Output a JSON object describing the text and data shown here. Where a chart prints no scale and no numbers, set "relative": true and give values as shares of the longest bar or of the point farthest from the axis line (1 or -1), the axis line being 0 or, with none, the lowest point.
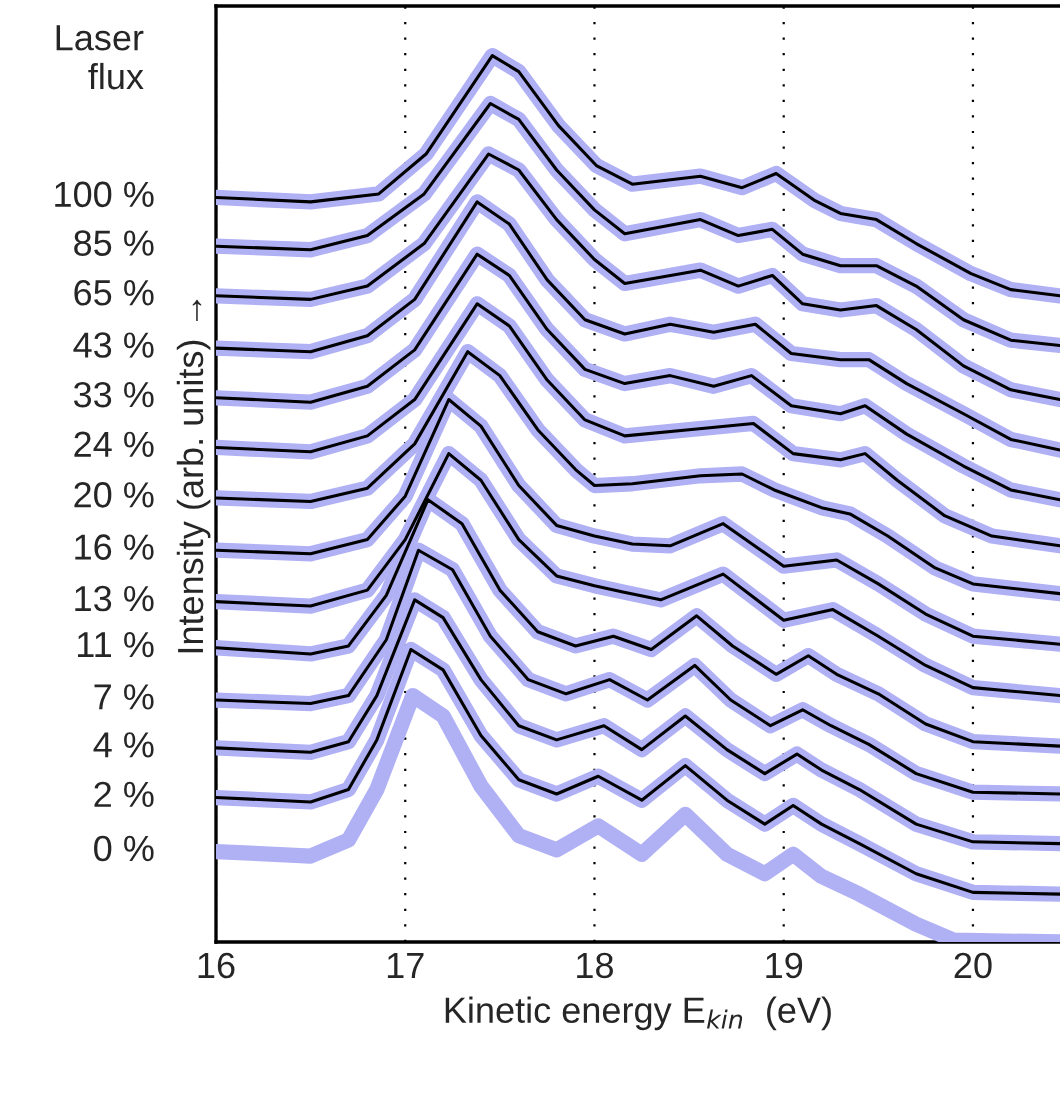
{
  "chart_data": {
    "type": "line",
    "relative": true,
    "xlabel": "Kinetic energy E$_{kin}$  (eV)",
    "ylabel": "Intensity (arb. units) →",
    "legend_title": "Laser flux",
    "xlim": [
      16,
      20.46
    ],
    "xticks": [
      16,
      17,
      18,
      19,
      20
    ],
    "grid": "x",
    "line_style": "solid",
    "marker": "none",
    "legend": "left",
    "series": [
      {
        "name": "100 %",
        "color": "#b0b0f5",
        "x": [
          16.0,
          16.5,
          16.86,
          17.11,
          17.46,
          17.6,
          17.81,
          18.01,
          18.2,
          18.56,
          18.78,
          18.96,
          19.16,
          19.3,
          19.49,
          19.7,
          19.99,
          20.2,
          20.46
        ],
        "values": [
          0.84,
          0.835,
          0.844,
          0.889,
          1.0,
          0.982,
          0.921,
          0.876,
          0.855,
          0.864,
          0.851,
          0.867,
          0.837,
          0.822,
          0.815,
          0.788,
          0.754,
          0.736,
          0.729
        ]
      },
      {
        "color": "#000000",
        "x": [
          16.0,
          16.5,
          16.86,
          17.11,
          17.46,
          17.6,
          17.81,
          18.01,
          18.2,
          18.56,
          18.78,
          18.96,
          19.16,
          19.3,
          19.49,
          19.7,
          19.99,
          20.2,
          20.46
        ],
        "values": [
          0.84,
          0.835,
          0.844,
          0.889,
          1.0,
          0.982,
          0.921,
          0.876,
          0.855,
          0.864,
          0.851,
          0.867,
          0.837,
          0.822,
          0.815,
          0.788,
          0.754,
          0.736,
          0.729
        ]
      },
      {
        "name": "85 %",
        "color": "#b0b0f5",
        "x": [
          16.0,
          16.5,
          16.8,
          17.1,
          17.45,
          17.6,
          17.8,
          18.0,
          18.16,
          18.56,
          18.76,
          18.94,
          19.1,
          19.3,
          19.49,
          19.7,
          19.95,
          20.2,
          20.46
        ],
        "values": [
          0.785,
          0.781,
          0.797,
          0.844,
          0.946,
          0.928,
          0.871,
          0.826,
          0.799,
          0.815,
          0.797,
          0.804,
          0.776,
          0.763,
          0.763,
          0.74,
          0.702,
          0.679,
          0.673
        ]
      },
      {
        "color": "#000000",
        "x": [
          16.0,
          16.5,
          16.8,
          17.1,
          17.45,
          17.6,
          17.8,
          18.0,
          18.16,
          18.56,
          18.76,
          18.94,
          19.1,
          19.3,
          19.49,
          19.7,
          19.95,
          20.2,
          20.46
        ],
        "values": [
          0.785,
          0.781,
          0.797,
          0.844,
          0.946,
          0.928,
          0.871,
          0.826,
          0.799,
          0.815,
          0.797,
          0.804,
          0.776,
          0.763,
          0.763,
          0.74,
          0.702,
          0.679,
          0.673
        ]
      },
      {
        "name": "65 %",
        "color": "#b0b0f5",
        "x": [
          16.0,
          16.5,
          16.8,
          17.1,
          17.44,
          17.6,
          17.8,
          18.0,
          18.16,
          18.56,
          18.76,
          18.94,
          19.1,
          19.3,
          19.49,
          19.7,
          19.95,
          20.2,
          20.46
        ],
        "values": [
          0.729,
          0.725,
          0.74,
          0.788,
          0.889,
          0.871,
          0.815,
          0.77,
          0.743,
          0.758,
          0.74,
          0.752,
          0.72,
          0.713,
          0.718,
          0.691,
          0.65,
          0.623,
          0.612
        ]
      },
      {
        "color": "#000000",
        "x": [
          16.0,
          16.5,
          16.8,
          17.1,
          17.44,
          17.6,
          17.8,
          18.0,
          18.16,
          18.56,
          18.76,
          18.94,
          19.1,
          19.3,
          19.49,
          19.7,
          19.95,
          20.2,
          20.46
        ],
        "values": [
          0.729,
          0.725,
          0.74,
          0.788,
          0.889,
          0.871,
          0.815,
          0.77,
          0.743,
          0.758,
          0.74,
          0.752,
          0.72,
          0.713,
          0.718,
          0.691,
          0.65,
          0.623,
          0.612
        ]
      },
      {
        "name": "43 %",
        "color": "#b0b0f5",
        "x": [
          16.0,
          16.5,
          16.8,
          17.05,
          17.38,
          17.55,
          17.75,
          17.95,
          18.16,
          18.4,
          18.63,
          18.85,
          19.04,
          19.3,
          19.45,
          19.65,
          19.95,
          20.2,
          20.46
        ],
        "values": [
          0.67,
          0.666,
          0.684,
          0.725,
          0.835,
          0.81,
          0.747,
          0.702,
          0.686,
          0.697,
          0.688,
          0.697,
          0.664,
          0.657,
          0.657,
          0.63,
          0.596,
          0.567,
          0.555
        ]
      },
      {
        "color": "#000000",
        "x": [
          16.0,
          16.5,
          16.8,
          17.05,
          17.38,
          17.55,
          17.75,
          17.95,
          18.16,
          18.4,
          18.63,
          18.85,
          19.04,
          19.3,
          19.45,
          19.65,
          19.95,
          20.2,
          20.46
        ],
        "values": [
          0.67,
          0.666,
          0.684,
          0.725,
          0.835,
          0.81,
          0.747,
          0.702,
          0.686,
          0.697,
          0.688,
          0.697,
          0.664,
          0.657,
          0.657,
          0.63,
          0.596,
          0.567,
          0.555
        ]
      },
      {
        "name": "33 %",
        "color": "#b0b0f5",
        "x": [
          16.0,
          16.5,
          16.8,
          17.05,
          17.38,
          17.55,
          17.75,
          17.95,
          18.16,
          18.4,
          18.63,
          18.83,
          19.04,
          19.3,
          19.43,
          19.65,
          19.95,
          20.2,
          20.46
        ],
        "values": [
          0.614,
          0.609,
          0.627,
          0.668,
          0.776,
          0.752,
          0.691,
          0.646,
          0.63,
          0.639,
          0.627,
          0.639,
          0.605,
          0.596,
          0.605,
          0.573,
          0.537,
          0.51,
          0.499
        ]
      },
      {
        "color": "#000000",
        "x": [
          16.0,
          16.5,
          16.8,
          17.05,
          17.38,
          17.55,
          17.75,
          17.95,
          18.16,
          18.4,
          18.63,
          18.83,
          19.04,
          19.3,
          19.43,
          19.65,
          19.95,
          20.2,
          20.46
        ],
        "values": [
          0.614,
          0.609,
          0.627,
          0.668,
          0.776,
          0.752,
          0.691,
          0.646,
          0.63,
          0.639,
          0.627,
          0.639,
          0.605,
          0.596,
          0.605,
          0.573,
          0.537,
          0.51,
          0.499
        ]
      },
      {
        "name": "24 %",
        "color": "#b0b0f5",
        "x": [
          16.0,
          16.5,
          16.8,
          17.05,
          17.38,
          17.55,
          17.75,
          17.95,
          18.16,
          18.5,
          18.84,
          19.05,
          19.3,
          19.43,
          19.6,
          19.85,
          20.1,
          20.46
        ],
        "values": [
          0.558,
          0.553,
          0.571,
          0.612,
          0.72,
          0.695,
          0.634,
          0.589,
          0.571,
          0.578,
          0.585,
          0.551,
          0.544,
          0.551,
          0.521,
          0.481,
          0.458,
          0.447
        ]
      },
      {
        "color": "#000000",
        "x": [
          16.0,
          16.5,
          16.8,
          17.05,
          17.38,
          17.55,
          17.75,
          17.95,
          18.16,
          18.5,
          18.84,
          19.05,
          19.3,
          19.43,
          19.6,
          19.85,
          20.1,
          20.46
        ],
        "values": [
          0.558,
          0.553,
          0.571,
          0.612,
          0.72,
          0.695,
          0.634,
          0.589,
          0.571,
          0.578,
          0.585,
          0.551,
          0.544,
          0.551,
          0.521,
          0.481,
          0.458,
          0.447
        ]
      },
      {
        "name": "20 %",
        "color": "#b0b0f5",
        "x": [
          16.0,
          16.5,
          16.8,
          17.05,
          17.33,
          17.5,
          17.7,
          17.9,
          18.0,
          18.2,
          18.56,
          18.78,
          18.95,
          19.2,
          19.35,
          19.55,
          19.8,
          20.0,
          20.46
        ],
        "values": [
          0.501,
          0.497,
          0.512,
          0.562,
          0.666,
          0.639,
          0.578,
          0.533,
          0.515,
          0.517,
          0.526,
          0.528,
          0.51,
          0.49,
          0.483,
          0.458,
          0.422,
          0.404,
          0.393
        ]
      },
      {
        "color": "#000000",
        "x": [
          16.0,
          16.5,
          16.8,
          17.05,
          17.33,
          17.5,
          17.7,
          17.9,
          18.0,
          18.2,
          18.56,
          18.78,
          18.95,
          19.2,
          19.35,
          19.55,
          19.8,
          20.0,
          20.46
        ],
        "values": [
          0.501,
          0.497,
          0.512,
          0.562,
          0.666,
          0.639,
          0.578,
          0.533,
          0.515,
          0.517,
          0.526,
          0.528,
          0.51,
          0.49,
          0.483,
          0.458,
          0.422,
          0.404,
          0.393
        ]
      },
      {
        "name": "16 %",
        "color": "#b0b0f5",
        "x": [
          16.0,
          16.5,
          16.8,
          17.0,
          17.23,
          17.4,
          17.6,
          17.8,
          18.0,
          18.2,
          18.4,
          18.68,
          19.0,
          19.28,
          19.5,
          19.75,
          20.0,
          20.46
        ],
        "values": [
          0.442,
          0.438,
          0.454,
          0.503,
          0.612,
          0.582,
          0.515,
          0.47,
          0.458,
          0.449,
          0.447,
          0.472,
          0.424,
          0.431,
          0.404,
          0.37,
          0.345,
          0.336
        ]
      },
      {
        "color": "#000000",
        "x": [
          16.0,
          16.5,
          16.8,
          17.0,
          17.23,
          17.4,
          17.6,
          17.8,
          18.0,
          18.2,
          18.4,
          18.68,
          19.0,
          19.28,
          19.5,
          19.75,
          20.0,
          20.46
        ],
        "values": [
          0.442,
          0.438,
          0.454,
          0.503,
          0.612,
          0.582,
          0.515,
          0.47,
          0.458,
          0.449,
          0.447,
          0.472,
          0.424,
          0.431,
          0.404,
          0.37,
          0.345,
          0.336
        ]
      },
      {
        "name": "13 %",
        "color": "#b0b0f5",
        "x": [
          16.0,
          16.5,
          16.8,
          17.0,
          17.23,
          17.4,
          17.6,
          17.8,
          18.0,
          18.15,
          18.35,
          18.68,
          19.0,
          19.26,
          19.5,
          19.75,
          20.0,
          20.46
        ],
        "values": [
          0.384,
          0.379,
          0.397,
          0.454,
          0.551,
          0.521,
          0.454,
          0.413,
          0.402,
          0.395,
          0.386,
          0.415,
          0.363,
          0.375,
          0.345,
          0.312,
          0.287,
          0.278
        ]
      },
      {
        "color": "#000000",
        "x": [
          16.0,
          16.5,
          16.8,
          17.0,
          17.23,
          17.4,
          17.6,
          17.8,
          18.0,
          18.15,
          18.35,
          18.68,
          19.0,
          19.26,
          19.5,
          19.75,
          20.0,
          20.46
        ],
        "values": [
          0.384,
          0.379,
          0.397,
          0.454,
          0.551,
          0.521,
          0.454,
          0.413,
          0.402,
          0.395,
          0.386,
          0.415,
          0.363,
          0.375,
          0.345,
          0.312,
          0.287,
          0.278
        ]
      },
      {
        "name": "11 %",
        "color": "#b0b0f5",
        "x": [
          16.0,
          16.5,
          16.7,
          16.9,
          17.12,
          17.3,
          17.5,
          17.7,
          17.9,
          18.1,
          18.3,
          18.54,
          18.73,
          18.96,
          19.13,
          19.28,
          19.5,
          19.75,
          20.0,
          20.46
        ],
        "values": [
          0.332,
          0.325,
          0.334,
          0.391,
          0.499,
          0.472,
          0.397,
          0.35,
          0.334,
          0.345,
          0.33,
          0.368,
          0.334,
          0.302,
          0.323,
          0.302,
          0.28,
          0.246,
          0.226,
          0.221
        ]
      },
      {
        "color": "#000000",
        "x": [
          16.0,
          16.5,
          16.7,
          16.9,
          17.12,
          17.3,
          17.5,
          17.7,
          17.9,
          18.1,
          18.3,
          18.54,
          18.73,
          18.96,
          19.13,
          19.28,
          19.5,
          19.75,
          20.0,
          20.46
        ],
        "values": [
          0.332,
          0.325,
          0.334,
          0.391,
          0.499,
          0.472,
          0.397,
          0.35,
          0.334,
          0.345,
          0.33,
          0.368,
          0.334,
          0.302,
          0.323,
          0.302,
          0.28,
          0.246,
          0.226,
          0.221
        ]
      },
      {
        "name": "7 %",
        "color": "#b0b0f5",
        "x": [
          16.0,
          16.5,
          16.7,
          16.9,
          17.07,
          17.25,
          17.45,
          17.65,
          17.85,
          18.08,
          18.28,
          18.53,
          18.72,
          18.93,
          19.1,
          19.25,
          19.45,
          19.7,
          20.0,
          20.46
        ],
        "values": [
          0.273,
          0.269,
          0.278,
          0.341,
          0.442,
          0.42,
          0.345,
          0.296,
          0.28,
          0.296,
          0.273,
          0.312,
          0.273,
          0.244,
          0.262,
          0.244,
          0.223,
          0.19,
          0.169,
          0.167
        ]
      },
      {
        "color": "#000000",
        "x": [
          16.0,
          16.5,
          16.7,
          16.9,
          17.07,
          17.25,
          17.45,
          17.65,
          17.85,
          18.08,
          18.28,
          18.53,
          18.72,
          18.93,
          19.1,
          19.25,
          19.45,
          19.7,
          20.0,
          20.46
        ],
        "values": [
          0.273,
          0.269,
          0.278,
          0.341,
          0.442,
          0.42,
          0.345,
          0.296,
          0.28,
          0.296,
          0.273,
          0.312,
          0.273,
          0.244,
          0.262,
          0.244,
          0.223,
          0.19,
          0.169,
          0.167
        ]
      },
      {
        "name": "4 %",
        "color": "#b0b0f5",
        "x": [
          16.0,
          16.5,
          16.7,
          16.85,
          17.05,
          17.2,
          17.4,
          17.6,
          17.8,
          18.05,
          18.25,
          18.48,
          18.7,
          18.9,
          19.07,
          19.2,
          19.4,
          19.7,
          20.0,
          20.46
        ],
        "values": [
          0.219,
          0.214,
          0.226,
          0.278,
          0.386,
          0.366,
          0.296,
          0.244,
          0.228,
          0.244,
          0.217,
          0.255,
          0.217,
          0.19,
          0.212,
          0.194,
          0.172,
          0.133,
          0.113,
          0.111
        ]
      },
      {
        "color": "#000000",
        "x": [
          16.0,
          16.5,
          16.7,
          16.85,
          17.05,
          17.2,
          17.4,
          17.6,
          17.8,
          18.05,
          18.25,
          18.48,
          18.7,
          18.9,
          19.07,
          19.2,
          19.4,
          19.7,
          20.0,
          20.46
        ],
        "values": [
          0.219,
          0.214,
          0.226,
          0.278,
          0.386,
          0.366,
          0.296,
          0.244,
          0.228,
          0.244,
          0.217,
          0.255,
          0.217,
          0.19,
          0.212,
          0.194,
          0.172,
          0.133,
          0.113,
          0.111
        ]
      },
      {
        "name": "2 %",
        "color": "#b0b0f5",
        "x": [
          16.0,
          16.5,
          16.7,
          16.85,
          17.03,
          17.2,
          17.4,
          17.6,
          17.8,
          18.02,
          18.25,
          18.48,
          18.7,
          18.9,
          19.05,
          19.2,
          19.4,
          19.7,
          20.0,
          20.46
        ],
        "values": [
          0.163,
          0.158,
          0.172,
          0.228,
          0.33,
          0.307,
          0.233,
          0.183,
          0.167,
          0.187,
          0.16,
          0.199,
          0.16,
          0.133,
          0.154,
          0.133,
          0.111,
          0.077,
          0.056,
          0.054
        ]
      },
      {
        "color": "#000000",
        "x": [
          16.0,
          16.5,
          16.7,
          16.85,
          17.03,
          17.2,
          17.4,
          17.6,
          17.8,
          18.02,
          18.25,
          18.48,
          18.7,
          18.9,
          19.05,
          19.2,
          19.4,
          19.7,
          20.0,
          20.46
        ],
        "values": [
          0.163,
          0.158,
          0.172,
          0.228,
          0.33,
          0.307,
          0.233,
          0.183,
          0.167,
          0.187,
          0.16,
          0.199,
          0.16,
          0.133,
          0.154,
          0.133,
          0.111,
          0.077,
          0.056,
          0.054
        ]
      },
      {
        "name": "0 %",
        "color": "#b0b0f5",
        "x": [
          16.0,
          16.5,
          16.7,
          16.85,
          17.04,
          17.2,
          17.4,
          17.6,
          17.8,
          18.02,
          18.25,
          18.48,
          18.7,
          18.9,
          19.05,
          19.2,
          19.4,
          19.7,
          19.9,
          20.46
        ],
        "values": [
          0.102,
          0.097,
          0.115,
          0.172,
          0.278,
          0.255,
          0.176,
          0.12,
          0.104,
          0.131,
          0.099,
          0.144,
          0.099,
          0.077,
          0.099,
          0.074,
          0.054,
          0.02,
          0.002,
          0
        ]
      }
    ]
  }
}
